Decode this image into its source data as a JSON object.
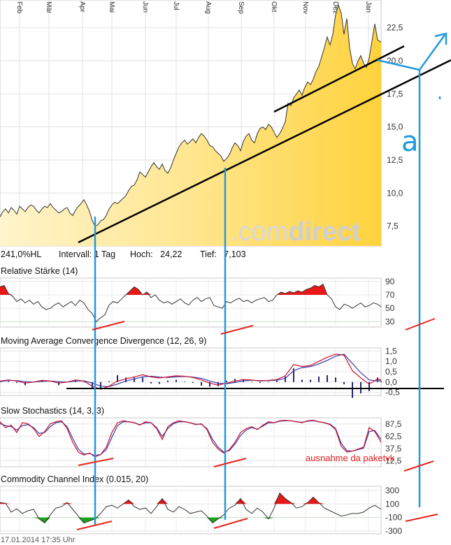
{
  "colors": {
    "price_fill_top": "#ffd84a",
    "price_fill_light": "#fff3c8",
    "positive": "#e81818",
    "negative": "#1aa31a",
    "annotation_blue": "#2299dd",
    "annotation_red": "#e8231e",
    "macd_line": "#c8102e",
    "signal_line": "#3a3aa8",
    "bars": "#24247a"
  },
  "watermark": {
    "brand_a": ".com",
    "brand_b": "direct"
  },
  "price_info": {
    "perf": "241,0%HL",
    "interval": "Intervall: 1 Tag",
    "high": "Hoch:   24,22",
    "low": "Tief:   7,103"
  },
  "footer": {
    "timestamp": "17.01.2014 17:35 Uhr"
  },
  "annotation_text": {
    "note": "ausnahme da paketvk",
    "letter": "a"
  },
  "chart_data": [
    {
      "type": "area",
      "id": "price",
      "months": [
        "Feb",
        "Mär",
        "Apr",
        "Mai",
        "Jun",
        "Jul",
        "Aug",
        "Sep",
        "Okt",
        "Nov",
        "Dez",
        "Jan"
      ],
      "yticks": [
        "7,5",
        "10,0",
        "12,5",
        "15,0",
        "17,5",
        "20,0",
        "22,5"
      ],
      "ylim": [
        6,
        24.6
      ],
      "x": [
        0,
        4,
        8,
        12,
        16,
        20,
        24,
        28,
        32,
        36,
        40,
        44,
        48,
        52,
        56,
        60,
        64,
        68,
        72,
        76,
        80,
        84,
        88,
        92,
        96,
        100,
        104,
        108,
        112,
        116,
        120,
        124,
        128,
        132,
        136,
        140,
        144,
        148,
        152,
        156,
        160,
        164,
        168,
        172,
        176,
        180,
        184,
        188,
        192,
        196,
        200,
        204,
        208,
        212,
        216,
        220,
        224,
        228,
        232,
        236,
        240,
        244,
        248,
        252,
        256,
        260,
        264,
        268,
        272,
        276,
        280,
        284,
        288,
        292,
        296,
        300,
        304,
        308,
        312,
        316,
        320,
        324,
        328,
        332,
        336,
        340,
        344,
        348,
        352,
        356,
        360,
        364,
        368,
        372,
        376,
        380,
        384,
        388,
        392,
        396,
        400,
        404,
        408,
        412,
        416,
        420,
        424,
        428,
        432,
        436,
        440,
        444,
        448,
        452,
        456,
        460,
        464,
        468,
        472,
        476,
        480,
        484,
        488,
        492,
        496,
        500,
        504,
        508,
        512,
        516,
        520,
        524,
        528,
        532,
        536,
        540,
        545
      ],
      "values": [
        8.2,
        8.6,
        8.8,
        8.5,
        8.9,
        8.7,
        8.4,
        9.0,
        8.8,
        8.6,
        8.9,
        9.1,
        9.0,
        8.7,
        8.5,
        8.8,
        9.0,
        8.9,
        9.2,
        8.9,
        8.7,
        8.5,
        8.6,
        8.8,
        8.9,
        8.5,
        8.3,
        8.7,
        9.0,
        9.2,
        9.5,
        9.1,
        8.6,
        7.9,
        7.5,
        7.6,
        7.9,
        8.0,
        8.3,
        8.8,
        9.1,
        9.3,
        9.2,
        9.4,
        9.6,
        9.8,
        10.2,
        10.5,
        10.6,
        11.0,
        11.6,
        11.4,
        11.2,
        11.6,
        12.0,
        12.3,
        12.0,
        11.8,
        12.2,
        11.7,
        11.5,
        11.9,
        12.5,
        13.0,
        13.5,
        13.8,
        14.0,
        13.7,
        13.9,
        14.1,
        13.8,
        14.2,
        14.5,
        14.3,
        14.0,
        13.6,
        13.5,
        13.2,
        13.0,
        12.8,
        12.4,
        12.6,
        12.9,
        13.4,
        13.8,
        13.6,
        13.2,
        13.9,
        14.3,
        14.5,
        14.0,
        13.8,
        14.5,
        14.9,
        15.0,
        14.8,
        15.2,
        15.0,
        14.6,
        14.2,
        14.5,
        14.9,
        15.4,
        16.8,
        16.6,
        17.2,
        17.5,
        17.8,
        17.4,
        18.0,
        18.4,
        18.2,
        18.6,
        19.2,
        19.6,
        20.3,
        21.0,
        21.8,
        21.2,
        22.0,
        23.5,
        24.2,
        23.6,
        22.0,
        23.2,
        21.0,
        19.8,
        19.4,
        20.0,
        20.4,
        19.8,
        19.5,
        20.2,
        21.5,
        22.8,
        21.6,
        21.4
      ]
    },
    {
      "type": "line",
      "id": "rsi",
      "title": "Relative Stärke (14)",
      "yticks": [
        "90",
        "70",
        "50",
        "30"
      ],
      "ylim": [
        22,
        95
      ],
      "thresholds": [
        70,
        30
      ],
      "x": [
        0,
        6,
        12,
        18,
        24,
        30,
        36,
        42,
        48,
        54,
        60,
        66,
        72,
        78,
        84,
        90,
        96,
        102,
        108,
        114,
        120,
        126,
        132,
        138,
        144,
        150,
        156,
        162,
        168,
        174,
        180,
        186,
        192,
        198,
        204,
        210,
        216,
        222,
        228,
        234,
        240,
        246,
        252,
        258,
        264,
        270,
        276,
        282,
        288,
        294,
        300,
        306,
        312,
        318,
        324,
        330,
        336,
        342,
        348,
        354,
        360,
        366,
        372,
        378,
        384,
        390,
        396,
        402,
        408,
        414,
        420,
        426,
        432,
        438,
        444,
        450,
        456,
        462,
        468,
        474,
        480,
        486,
        492,
        498,
        504,
        510,
        516,
        522,
        528,
        534,
        540,
        545
      ],
      "values": [
        82,
        84,
        72,
        68,
        60,
        64,
        58,
        62,
        56,
        60,
        52,
        48,
        50,
        55,
        58,
        52,
        56,
        60,
        54,
        62,
        58,
        48,
        42,
        30,
        36,
        40,
        55,
        60,
        58,
        64,
        70,
        76,
        82,
        78,
        70,
        74,
        66,
        70,
        62,
        58,
        60,
        56,
        60,
        64,
        58,
        55,
        62,
        66,
        60,
        64,
        66,
        54,
        52,
        50,
        60,
        58,
        62,
        65,
        60,
        62,
        58,
        62,
        64,
        66,
        60,
        62,
        70,
        74,
        72,
        75,
        73,
        76,
        74,
        78,
        80,
        84,
        82,
        86,
        70,
        64,
        52,
        48,
        56,
        54,
        50,
        54,
        58,
        52,
        54,
        58,
        56,
        52
      ]
    },
    {
      "type": "line",
      "id": "macd",
      "title": "Moving Average Convergence Divergence (12, 26, 9)",
      "yticks": [
        "1,5",
        "1,0",
        "0,5",
        "0,0",
        "-0,5"
      ],
      "ylim": [
        -0.65,
        1.65
      ],
      "x": [
        0,
        12,
        24,
        36,
        48,
        60,
        72,
        84,
        96,
        108,
        120,
        132,
        144,
        156,
        168,
        180,
        192,
        204,
        216,
        228,
        240,
        252,
        264,
        276,
        288,
        300,
        312,
        324,
        336,
        348,
        360,
        372,
        384,
        396,
        408,
        420,
        432,
        444,
        456,
        468,
        480,
        492,
        504,
        516,
        528,
        540,
        545
      ],
      "macd": [
        0.05,
        0.1,
        0.05,
        -0.05,
        0.0,
        0.08,
        0.05,
        -0.05,
        0.0,
        0.1,
        0.05,
        -0.2,
        -0.35,
        -0.2,
        0.05,
        0.15,
        0.25,
        0.35,
        0.25,
        0.2,
        0.25,
        0.3,
        0.28,
        0.22,
        0.1,
        -0.05,
        -0.15,
        -0.05,
        0.05,
        0.12,
        0.1,
        0.05,
        0.08,
        0.12,
        0.3,
        0.85,
        0.75,
        0.8,
        1.0,
        1.2,
        1.35,
        1.3,
        0.55,
        0.2,
        -0.1,
        0.15,
        0.1
      ],
      "signal": [
        0.02,
        0.08,
        0.07,
        0.02,
        0.0,
        0.04,
        0.05,
        0.02,
        0.0,
        0.05,
        0.06,
        -0.05,
        -0.2,
        -0.22,
        -0.1,
        0.05,
        0.15,
        0.25,
        0.28,
        0.24,
        0.22,
        0.25,
        0.27,
        0.24,
        0.18,
        0.05,
        -0.06,
        -0.08,
        -0.02,
        0.06,
        0.09,
        0.07,
        0.07,
        0.09,
        0.18,
        0.55,
        0.7,
        0.75,
        0.88,
        1.05,
        1.25,
        1.35,
        0.9,
        0.45,
        0.1,
        0.05,
        0.08
      ]
    },
    {
      "type": "line",
      "id": "stoch",
      "title": "Slow Stochastics (14, 3, 3)",
      "yticks": [
        "87,5",
        "62,5",
        "37,5",
        "12,5"
      ],
      "ylim": [
        0,
        100
      ],
      "x": [
        0,
        8,
        16,
        24,
        32,
        40,
        48,
        56,
        64,
        72,
        80,
        88,
        96,
        104,
        112,
        120,
        128,
        136,
        144,
        152,
        160,
        168,
        176,
        184,
        192,
        200,
        208,
        216,
        224,
        232,
        240,
        248,
        256,
        264,
        272,
        280,
        288,
        296,
        304,
        312,
        320,
        328,
        336,
        344,
        352,
        360,
        368,
        376,
        384,
        392,
        400,
        408,
        416,
        424,
        432,
        440,
        448,
        456,
        464,
        472,
        480,
        488,
        496,
        504,
        512,
        520,
        528,
        536,
        545
      ],
      "k": [
        92,
        80,
        85,
        70,
        90,
        88,
        78,
        62,
        72,
        88,
        92,
        94,
        78,
        50,
        30,
        24,
        28,
        20,
        25,
        40,
        70,
        90,
        94,
        92,
        90,
        85,
        92,
        90,
        78,
        56,
        82,
        90,
        94,
        92,
        90,
        86,
        88,
        76,
        50,
        36,
        28,
        35,
        50,
        70,
        78,
        82,
        76,
        85,
        92,
        90,
        94,
        95,
        94,
        92,
        90,
        94,
        95,
        92,
        90,
        86,
        76,
        42,
        30,
        32,
        36,
        40,
        80,
        72,
        50
      ],
      "d": [
        88,
        84,
        82,
        75,
        84,
        86,
        80,
        68,
        70,
        82,
        90,
        92,
        82,
        58,
        36,
        26,
        27,
        23,
        25,
        35,
        60,
        84,
        92,
        92,
        90,
        86,
        90,
        90,
        80,
        62,
        78,
        88,
        92,
        92,
        90,
        87,
        87,
        78,
        56,
        40,
        30,
        33,
        46,
        64,
        75,
        80,
        77,
        83,
        90,
        90,
        93,
        94,
        94,
        92,
        91,
        93,
        94,
        92,
        90,
        87,
        78,
        48,
        33,
        32,
        35,
        38,
        72,
        74,
        56
      ]
    },
    {
      "type": "line",
      "id": "cci",
      "title": "Commodity Channel Index (0.015, 20)",
      "yticks": [
        "300",
        "100",
        "-100",
        "-300"
      ],
      "ylim": [
        -340,
        360
      ],
      "x": [
        0,
        8,
        16,
        24,
        32,
        40,
        48,
        56,
        64,
        72,
        80,
        88,
        96,
        104,
        112,
        120,
        128,
        136,
        144,
        152,
        160,
        168,
        176,
        184,
        192,
        200,
        208,
        216,
        224,
        232,
        240,
        248,
        256,
        264,
        272,
        280,
        288,
        296,
        304,
        312,
        320,
        328,
        336,
        344,
        352,
        360,
        368,
        376,
        384,
        392,
        400,
        408,
        416,
        424,
        432,
        440,
        448,
        456,
        464,
        472,
        480,
        488,
        496,
        504,
        512,
        520,
        528,
        536,
        545
      ],
      "values": [
        120,
        110,
        -20,
        30,
        -40,
        0,
        20,
        -120,
        -180,
        -60,
        40,
        60,
        120,
        20,
        -80,
        -180,
        -150,
        -120,
        -40,
        60,
        80,
        40,
        100,
        160,
        60,
        20,
        40,
        -40,
        60,
        180,
        20,
        -20,
        60,
        20,
        -40,
        -20,
        0,
        -80,
        -180,
        -120,
        -60,
        40,
        80,
        180,
        20,
        -40,
        40,
        -20,
        -120,
        40,
        260,
        180,
        120,
        40,
        60,
        120,
        200,
        120,
        40,
        0,
        -40,
        -80,
        -60,
        -40,
        -40,
        -20,
        40,
        80,
        20
      ]
    }
  ]
}
